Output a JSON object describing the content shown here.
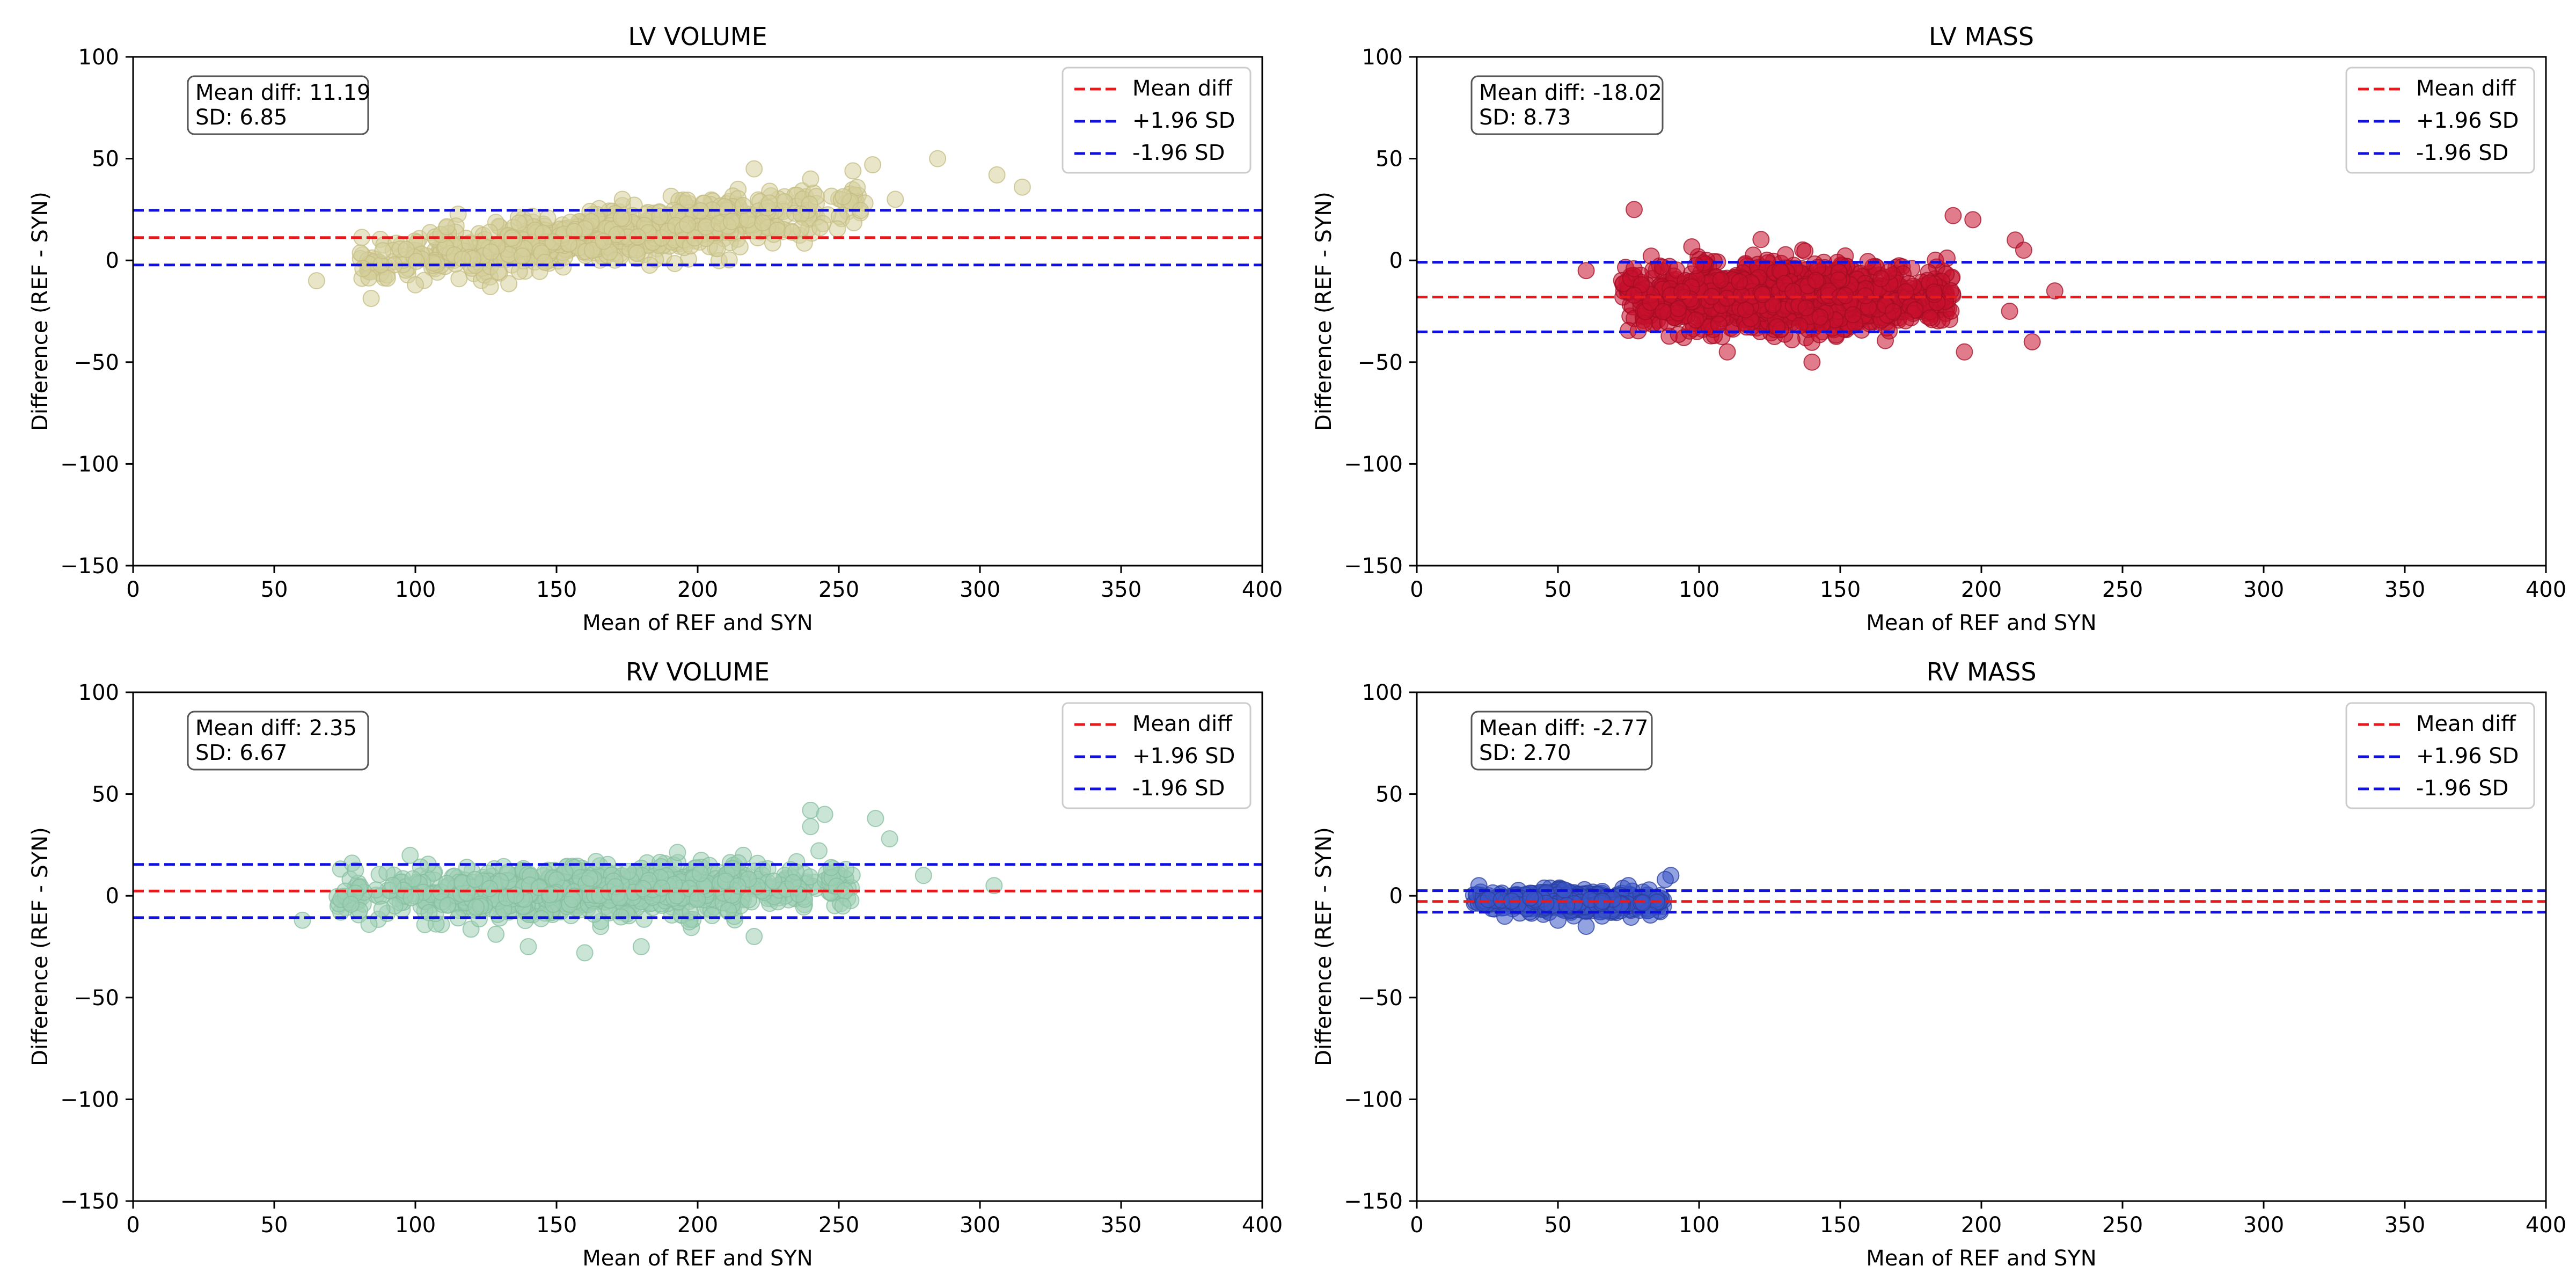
{
  "chart_data": [
    {
      "type": "scatter",
      "title": "LV VOLUME",
      "xlabel": "Mean of REF and SYN",
      "ylabel": "Difference (REF - SYN)",
      "xlim": [
        0,
        400
      ],
      "ylim": [
        -150,
        100
      ],
      "xticks": [
        0,
        50,
        100,
        150,
        200,
        250,
        300,
        350,
        400
      ],
      "yticks": [
        -150,
        -100,
        -50,
        0,
        50,
        100
      ],
      "color": "#d6cf9c",
      "edge_color": "#c4bc82",
      "mean_diff": 11.19,
      "sd": 6.85,
      "upper_loa": 24.62,
      "lower_loa": -2.24,
      "stats_text": [
        "Mean diff: 11.19",
        "SD: 6.85"
      ],
      "legend": [
        "Mean diff",
        "+1.96 SD",
        "-1.96 SD"
      ],
      "scatter_x_range": [
        80,
        260
      ],
      "scatter_slope": 0.17,
      "scatter_center_x": 160,
      "n_points": 900,
      "outliers": [
        [
          65,
          -10
        ],
        [
          100,
          -12
        ],
        [
          285,
          50
        ],
        [
          306,
          42
        ],
        [
          315,
          36
        ],
        [
          262,
          47
        ],
        [
          255,
          44
        ],
        [
          220,
          45
        ],
        [
          240,
          40
        ],
        [
          270,
          30
        ]
      ]
    },
    {
      "type": "scatter",
      "title": "LV MASS",
      "xlabel": "Mean of REF and SYN",
      "ylabel": "Difference (REF - SYN)",
      "xlim": [
        0,
        400
      ],
      "ylim": [
        -150,
        100
      ],
      "xticks": [
        0,
        50,
        100,
        150,
        200,
        250,
        300,
        350,
        400
      ],
      "yticks": [
        -150,
        -100,
        -50,
        0,
        50,
        100
      ],
      "color": "#c8102e",
      "edge_color": "#a00d24",
      "mean_diff": -18.02,
      "sd": 8.73,
      "upper_loa": -0.91,
      "lower_loa": -35.13,
      "stats_text": [
        "Mean diff: -18.02",
        "SD: 8.73"
      ],
      "legend": [
        "Mean diff",
        "+1.96 SD",
        "-1.96 SD"
      ],
      "scatter_x_range": [
        72,
        190
      ],
      "scatter_slope": 0.0,
      "scatter_center_x": 130,
      "n_points": 1400,
      "outliers": [
        [
          60,
          -5
        ],
        [
          77,
          25
        ],
        [
          190,
          22
        ],
        [
          197,
          20
        ],
        [
          212,
          10
        ],
        [
          215,
          5
        ],
        [
          218,
          -40
        ],
        [
          226,
          -15
        ],
        [
          210,
          -25
        ],
        [
          194,
          -45
        ],
        [
          140,
          -50
        ],
        [
          110,
          -45
        ]
      ]
    },
    {
      "type": "scatter",
      "title": "RV VOLUME",
      "xlabel": "Mean of REF and SYN",
      "ylabel": "Difference (REF - SYN)",
      "xlim": [
        0,
        400
      ],
      "ylim": [
        -150,
        100
      ],
      "xticks": [
        0,
        50,
        100,
        150,
        200,
        250,
        300,
        350,
        400
      ],
      "yticks": [
        -150,
        -100,
        -50,
        0,
        50,
        100
      ],
      "color": "#9fd0b4",
      "edge_color": "#86bd9f",
      "mean_diff": 2.35,
      "sd": 6.67,
      "upper_loa": 15.42,
      "lower_loa": -10.72,
      "stats_text": [
        "Mean diff: 2.35",
        "SD: 6.67"
      ],
      "legend": [
        "Mean diff",
        "+1.96 SD",
        "-1.96 SD"
      ],
      "scatter_x_range": [
        72,
        255
      ],
      "scatter_slope": 0.03,
      "scatter_center_x": 160,
      "n_points": 1000,
      "outliers": [
        [
          60,
          -12
        ],
        [
          240,
          42
        ],
        [
          245,
          40
        ],
        [
          240,
          34
        ],
        [
          263,
          38
        ],
        [
          268,
          28
        ],
        [
          280,
          10
        ],
        [
          305,
          5
        ],
        [
          160,
          -28
        ],
        [
          140,
          -25
        ],
        [
          180,
          -25
        ],
        [
          220,
          -20
        ]
      ]
    },
    {
      "type": "scatter",
      "title": "RV MASS",
      "xlabel": "Mean of REF and SYN",
      "ylabel": "Difference (REF - SYN)",
      "xlim": [
        0,
        400
      ],
      "ylim": [
        -150,
        100
      ],
      "xticks": [
        0,
        50,
        100,
        150,
        200,
        250,
        300,
        350,
        400
      ],
      "yticks": [
        -150,
        -100,
        -50,
        0,
        50,
        100
      ],
      "color": "#3a55c8",
      "edge_color": "#2a3f9e",
      "mean_diff": -2.77,
      "sd": 2.7,
      "upper_loa": 2.52,
      "lower_loa": -8.06,
      "stats_text": [
        "Mean diff: -2.77",
        "SD: 2.70"
      ],
      "legend": [
        "Mean diff",
        "+1.96 SD",
        "-1.96 SD"
      ],
      "scatter_x_range": [
        20,
        88
      ],
      "scatter_slope": -0.02,
      "scatter_center_x": 55,
      "n_points": 700,
      "outliers": [
        [
          90,
          10
        ],
        [
          88,
          8
        ],
        [
          60,
          -15
        ],
        [
          50,
          -12
        ],
        [
          22,
          5
        ]
      ]
    }
  ],
  "colors": {
    "mean_line": "#e8191c",
    "sd_line": "#1010e0",
    "axis": "#000000",
    "legend_border": "#cccccc"
  }
}
